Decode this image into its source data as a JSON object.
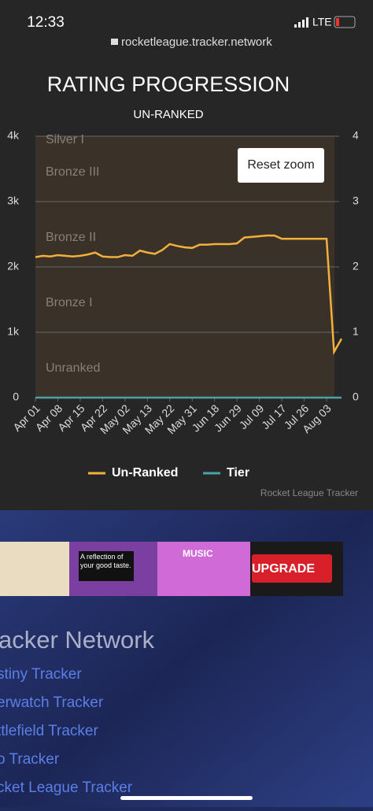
{
  "status_bar": {
    "time": "12:33",
    "network": "LTE"
  },
  "url": "rocketleague.tracker.network",
  "chart_data": {
    "type": "line",
    "title": "RATING PROGRESSION",
    "subtitle": "UN-RANKED",
    "categories": [
      "Apr 01",
      null,
      null,
      "Apr 08",
      null,
      null,
      "Apr 15",
      null,
      null,
      "Apr 22",
      null,
      null,
      "May 02",
      null,
      null,
      "May 13",
      null,
      null,
      "May 22",
      null,
      null,
      "May 31",
      null,
      null,
      "Jun 18",
      null,
      null,
      "Jun 29",
      null,
      null,
      "Jul 09",
      null,
      null,
      "Jul 17",
      null,
      null,
      "Jul 26",
      null,
      null,
      "Aug 03",
      null,
      null
    ],
    "series": [
      {
        "name": "Un-Ranked",
        "color": "#f2b13c",
        "values": [
          2150,
          2170,
          2160,
          2180,
          2170,
          2160,
          2170,
          2190,
          2220,
          2160,
          2150,
          2150,
          2180,
          2170,
          2250,
          2220,
          2200,
          2260,
          2350,
          2320,
          2300,
          2290,
          2340,
          2340,
          2350,
          2350,
          2350,
          2360,
          2450,
          2460,
          2470,
          2480,
          2480,
          2430,
          2430,
          2430,
          2430,
          2430,
          2430,
          2430,
          700,
          900
        ]
      },
      {
        "name": "Tier",
        "color": "#4aa3a0",
        "axis": "y2",
        "values": [
          0,
          0,
          0,
          0,
          0,
          0,
          0,
          0,
          0,
          0,
          0,
          0,
          0,
          0,
          0,
          0,
          0,
          0,
          0,
          0,
          0,
          0,
          0,
          0,
          0,
          0,
          0,
          0,
          0,
          0,
          0,
          0,
          0,
          0,
          0,
          0,
          0,
          0,
          0,
          0,
          0,
          0
        ]
      }
    ],
    "ylim": [
      0,
      4000
    ],
    "yticks": [
      0,
      {
        "value": 1000,
        "label": "1k"
      },
      {
        "value": 2000,
        "label": "2k"
      },
      {
        "value": 3000,
        "label": "3k"
      },
      {
        "value": 4000,
        "label": "4k"
      }
    ],
    "y2lim": [
      0,
      4
    ],
    "y2ticks": [
      0,
      1,
      2,
      3,
      4
    ],
    "grid": true,
    "bands": [
      "Silver I",
      "Bronze III",
      "Bronze II",
      "Bronze I",
      "Unranked"
    ],
    "button": "Reset zoom",
    "credit": "Rocket League Tracker"
  },
  "ads": {
    "tagline": "A reflection of your good taste.",
    "music": "MUSIC",
    "upgrade": "UPGRADE"
  },
  "footer": {
    "heading": "acker Network",
    "links": [
      "stiny Tracker",
      "erwatch Tracker",
      "ttlefield Tracker",
      "o Tracker",
      "cket League Tracker"
    ]
  }
}
